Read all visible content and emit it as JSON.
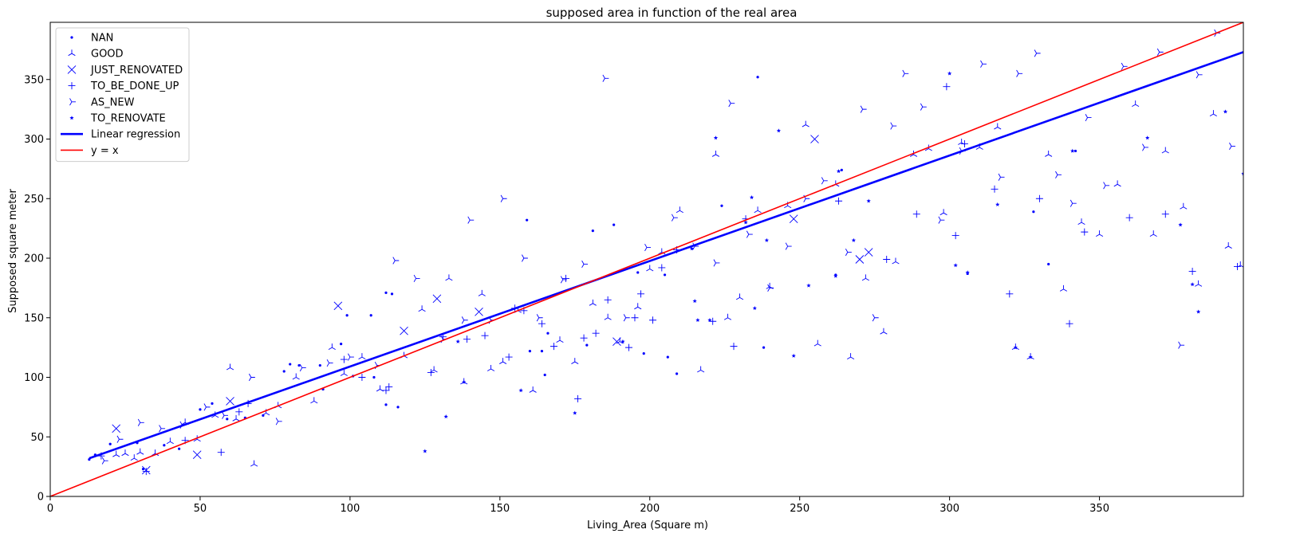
{
  "chart_data": {
    "type": "scatter",
    "title": "supposed area in function of the real area",
    "xlabel": "Living_Area (Square m)",
    "ylabel": "Supposed square meter",
    "xlim": [
      0,
      398
    ],
    "ylim": [
      0,
      398
    ],
    "x_ticks": [
      0,
      50,
      100,
      150,
      200,
      250,
      300,
      350
    ],
    "y_ticks": [
      0,
      50,
      100,
      150,
      200,
      250,
      300,
      350
    ],
    "grid": false,
    "legend_position": "top-left",
    "marker_color": "#0000ff",
    "series": [
      {
        "name": "NAN",
        "marker": "point",
        "points": [
          [
            13,
            31
          ],
          [
            15,
            35
          ],
          [
            20,
            44
          ],
          [
            29,
            45
          ],
          [
            31,
            23
          ],
          [
            38,
            43
          ],
          [
            43,
            40
          ],
          [
            50,
            73
          ],
          [
            54,
            78
          ],
          [
            59,
            65
          ],
          [
            65,
            66
          ],
          [
            71,
            68
          ],
          [
            78,
            105
          ],
          [
            80,
            111
          ],
          [
            83,
            110
          ],
          [
            90,
            110
          ],
          [
            91,
            90
          ],
          [
            97,
            128
          ],
          [
            99,
            152
          ],
          [
            101,
            101
          ],
          [
            107,
            152
          ],
          [
            108,
            100
          ],
          [
            112,
            77
          ],
          [
            112,
            171
          ],
          [
            114,
            170
          ],
          [
            116,
            75
          ],
          [
            159,
            232
          ],
          [
            160,
            122
          ],
          [
            164,
            122
          ],
          [
            165,
            102
          ],
          [
            166,
            137
          ],
          [
            179,
            127
          ],
          [
            181,
            223
          ],
          [
            188,
            228
          ],
          [
            196,
            188
          ],
          [
            198,
            120
          ],
          [
            205,
            186
          ],
          [
            206,
            117
          ],
          [
            209,
            103
          ],
          [
            224,
            244
          ],
          [
            236,
            352
          ],
          [
            238,
            125
          ],
          [
            262,
            186
          ],
          [
            264,
            274
          ],
          [
            306,
            187
          ],
          [
            328,
            239
          ],
          [
            333,
            195
          ],
          [
            342,
            290
          ]
        ]
      },
      {
        "name": "GOOD",
        "marker": "tri_up",
        "points": [
          [
            22,
            35
          ],
          [
            25,
            36
          ],
          [
            28,
            32
          ],
          [
            30,
            37
          ],
          [
            35,
            36
          ],
          [
            40,
            46
          ],
          [
            45,
            62
          ],
          [
            49,
            48
          ],
          [
            55,
            68
          ],
          [
            60,
            108
          ],
          [
            62,
            65
          ],
          [
            68,
            27
          ],
          [
            72,
            70
          ],
          [
            76,
            76
          ],
          [
            82,
            100
          ],
          [
            88,
            80
          ],
          [
            94,
            125
          ],
          [
            98,
            103
          ],
          [
            104,
            117
          ],
          [
            110,
            90
          ],
          [
            118,
            118
          ],
          [
            124,
            157
          ],
          [
            128,
            106
          ],
          [
            133,
            183
          ],
          [
            138,
            96
          ],
          [
            144,
            170
          ],
          [
            147,
            107
          ],
          [
            151,
            113
          ],
          [
            156,
            156
          ],
          [
            161,
            89
          ],
          [
            170,
            131
          ],
          [
            175,
            113
          ],
          [
            181,
            162
          ],
          [
            186,
            150
          ],
          [
            190,
            130
          ],
          [
            196,
            159
          ],
          [
            200,
            191
          ],
          [
            204,
            205
          ],
          [
            210,
            240
          ],
          [
            217,
            106
          ],
          [
            222,
            287
          ],
          [
            226,
            150
          ],
          [
            230,
            167
          ],
          [
            236,
            240
          ],
          [
            240,
            176
          ],
          [
            246,
            244
          ],
          [
            252,
            312
          ],
          [
            256,
            128
          ],
          [
            262,
            262
          ],
          [
            267,
            117
          ],
          [
            272,
            183
          ],
          [
            278,
            138
          ],
          [
            282,
            197
          ],
          [
            288,
            287
          ],
          [
            293,
            292
          ],
          [
            298,
            238
          ],
          [
            304,
            297
          ],
          [
            310,
            293
          ],
          [
            316,
            310
          ],
          [
            322,
            125
          ],
          [
            327,
            117
          ],
          [
            333,
            287
          ],
          [
            338,
            174
          ],
          [
            344,
            230
          ],
          [
            350,
            220
          ],
          [
            356,
            262
          ],
          [
            362,
            329
          ],
          [
            368,
            220
          ],
          [
            372,
            290
          ],
          [
            378,
            243
          ],
          [
            383,
            178
          ],
          [
            388,
            321
          ],
          [
            393,
            210
          ],
          [
            397,
            194
          ]
        ]
      },
      {
        "name": "JUST_RENOVATED",
        "marker": "x",
        "points": [
          [
            22,
            57
          ],
          [
            32,
            22
          ],
          [
            49,
            35
          ],
          [
            60,
            80
          ],
          [
            96,
            160
          ],
          [
            118,
            139
          ],
          [
            129,
            166
          ],
          [
            143,
            155
          ],
          [
            189,
            130
          ],
          [
            248,
            233
          ],
          [
            255,
            300
          ],
          [
            270,
            199
          ],
          [
            273,
            205
          ]
        ]
      },
      {
        "name": "TO_BE_DONE_UP",
        "marker": "plus",
        "points": [
          [
            17,
            34
          ],
          [
            32,
            21
          ],
          [
            45,
            47
          ],
          [
            57,
            37
          ],
          [
            63,
            71
          ],
          [
            66,
            78
          ],
          [
            98,
            115
          ],
          [
            104,
            100
          ],
          [
            112,
            89
          ],
          [
            113,
            92
          ],
          [
            127,
            104
          ],
          [
            131,
            134
          ],
          [
            139,
            132
          ],
          [
            145,
            135
          ],
          [
            153,
            117
          ],
          [
            155,
            158
          ],
          [
            158,
            156
          ],
          [
            164,
            145
          ],
          [
            168,
            126
          ],
          [
            172,
            183
          ],
          [
            176,
            82
          ],
          [
            178,
            133
          ],
          [
            182,
            137
          ],
          [
            186,
            165
          ],
          [
            193,
            125
          ],
          [
            195,
            150
          ],
          [
            197,
            170
          ],
          [
            201,
            148
          ],
          [
            204,
            192
          ],
          [
            209,
            207
          ],
          [
            221,
            147
          ],
          [
            228,
            126
          ],
          [
            232,
            233
          ],
          [
            263,
            248
          ],
          [
            279,
            199
          ],
          [
            289,
            237
          ],
          [
            299,
            344
          ],
          [
            302,
            219
          ],
          [
            305,
            296
          ],
          [
            315,
            258
          ],
          [
            320,
            170
          ],
          [
            330,
            250
          ],
          [
            340,
            145
          ],
          [
            345,
            222
          ],
          [
            360,
            234
          ],
          [
            372,
            237
          ],
          [
            381,
            189
          ],
          [
            396,
            193
          ]
        ]
      },
      {
        "name": "AS_NEW",
        "marker": "tri_right",
        "points": [
          [
            18,
            30
          ],
          [
            23,
            48
          ],
          [
            30,
            62
          ],
          [
            37,
            57
          ],
          [
            44,
            60
          ],
          [
            52,
            75
          ],
          [
            58,
            68
          ],
          [
            67,
            100
          ],
          [
            76,
            63
          ],
          [
            84,
            108
          ],
          [
            93,
            112
          ],
          [
            100,
            117
          ],
          [
            109,
            110
          ],
          [
            115,
            198
          ],
          [
            122,
            183
          ],
          [
            131,
            132
          ],
          [
            138,
            148
          ],
          [
            140,
            232
          ],
          [
            147,
            148
          ],
          [
            151,
            250
          ],
          [
            158,
            200
          ],
          [
            163,
            150
          ],
          [
            171,
            182
          ],
          [
            178,
            195
          ],
          [
            185,
            351
          ],
          [
            192,
            150
          ],
          [
            199,
            209
          ],
          [
            208,
            234
          ],
          [
            215,
            210
          ],
          [
            222,
            196
          ],
          [
            227,
            330
          ],
          [
            233,
            220
          ],
          [
            240,
            175
          ],
          [
            246,
            210
          ],
          [
            252,
            250
          ],
          [
            258,
            265
          ],
          [
            266,
            205
          ],
          [
            271,
            325
          ],
          [
            275,
            150
          ],
          [
            281,
            311
          ],
          [
            285,
            355
          ],
          [
            291,
            327
          ],
          [
            297,
            232
          ],
          [
            304,
            290
          ],
          [
            311,
            363
          ],
          [
            317,
            268
          ],
          [
            323,
            355
          ],
          [
            329,
            372
          ],
          [
            336,
            270
          ],
          [
            341,
            246
          ],
          [
            346,
            318
          ],
          [
            352,
            261
          ],
          [
            358,
            361
          ],
          [
            365,
            293
          ],
          [
            370,
            373
          ],
          [
            377,
            127
          ],
          [
            383,
            354
          ],
          [
            389,
            389
          ],
          [
            394,
            294
          ]
        ]
      },
      {
        "name": "TO_RENOVATE",
        "marker": "star",
        "points": [
          [
            125,
            38
          ],
          [
            132,
            67
          ],
          [
            136,
            130
          ],
          [
            138,
            96
          ],
          [
            157,
            89
          ],
          [
            175,
            70
          ],
          [
            191,
            130
          ],
          [
            214,
            208
          ],
          [
            215,
            164
          ],
          [
            216,
            148
          ],
          [
            220,
            148
          ],
          [
            222,
            301
          ],
          [
            232,
            230
          ],
          [
            234,
            251
          ],
          [
            235,
            158
          ],
          [
            239,
            215
          ],
          [
            243,
            307
          ],
          [
            248,
            118
          ],
          [
            253,
            177
          ],
          [
            262,
            185
          ],
          [
            263,
            273
          ],
          [
            268,
            215
          ],
          [
            273,
            248
          ],
          [
            300,
            355
          ],
          [
            302,
            194
          ],
          [
            306,
            188
          ],
          [
            316,
            245
          ],
          [
            322,
            125
          ],
          [
            327,
            117
          ],
          [
            341,
            290
          ],
          [
            366,
            301
          ],
          [
            377,
            228
          ],
          [
            381,
            178
          ],
          [
            383,
            155
          ],
          [
            392,
            323
          ],
          [
            398,
            271
          ]
        ]
      },
      {
        "name": "Linear regression",
        "type": "line",
        "color": "#0000ff",
        "points": [
          [
            13,
            32
          ],
          [
            398,
            373
          ]
        ]
      },
      {
        "name": "y = x",
        "type": "line",
        "color": "#ff0000",
        "points": [
          [
            0,
            0
          ],
          [
            398,
            398
          ]
        ]
      }
    ]
  }
}
